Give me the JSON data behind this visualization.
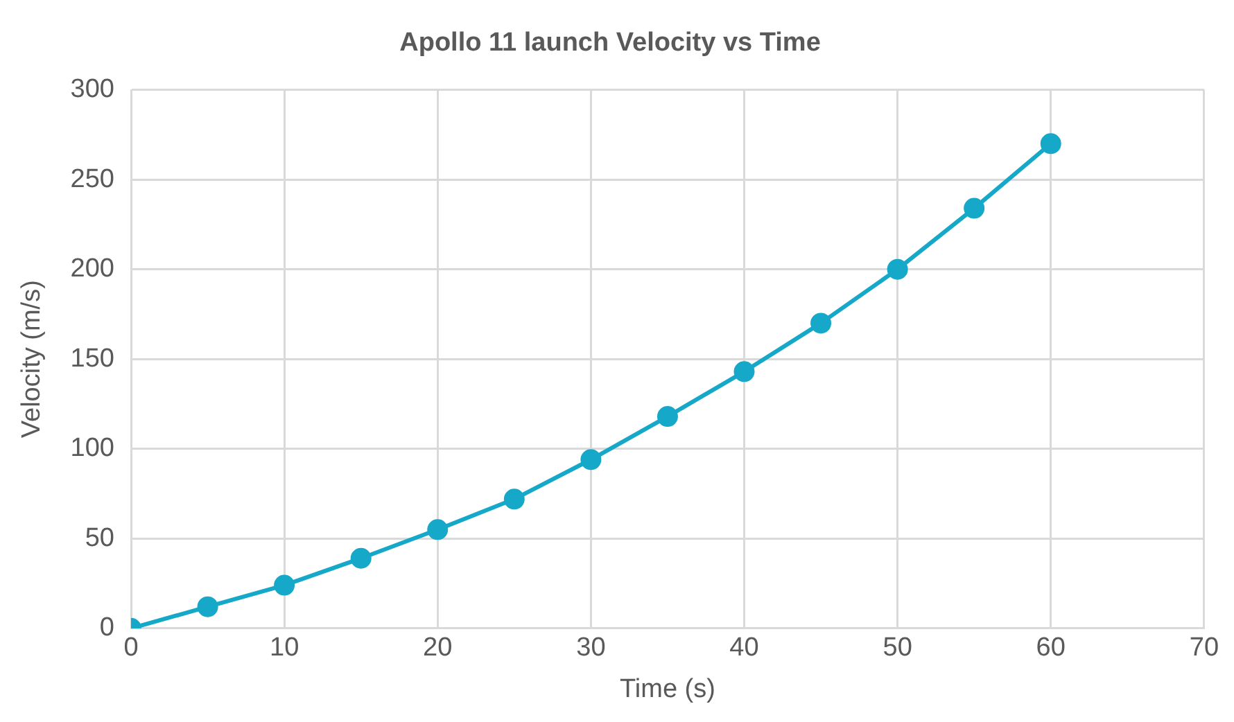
{
  "chart_data": {
    "type": "line",
    "title": "Apollo 11 launch Velocity vs Time",
    "xlabel": "Time (s)",
    "ylabel": "Velocity (m/s)",
    "x": [
      0,
      5,
      10,
      15,
      20,
      25,
      30,
      35,
      40,
      45,
      50,
      55,
      60
    ],
    "series": [
      {
        "color": "#16a8c8",
        "values": [
          0,
          12,
          24,
          39,
          55,
          72,
          94,
          118,
          143,
          170,
          200,
          234,
          270
        ]
      }
    ],
    "xlim": [
      0,
      70
    ],
    "xticks": [
      0,
      10,
      20,
      30,
      40,
      50,
      60,
      70
    ],
    "ylim": [
      0,
      300
    ],
    "yticks": [
      0,
      50,
      100,
      150,
      200,
      250,
      300
    ],
    "grid": true,
    "legend": false,
    "marker": "circle",
    "line_style": "solid"
  }
}
